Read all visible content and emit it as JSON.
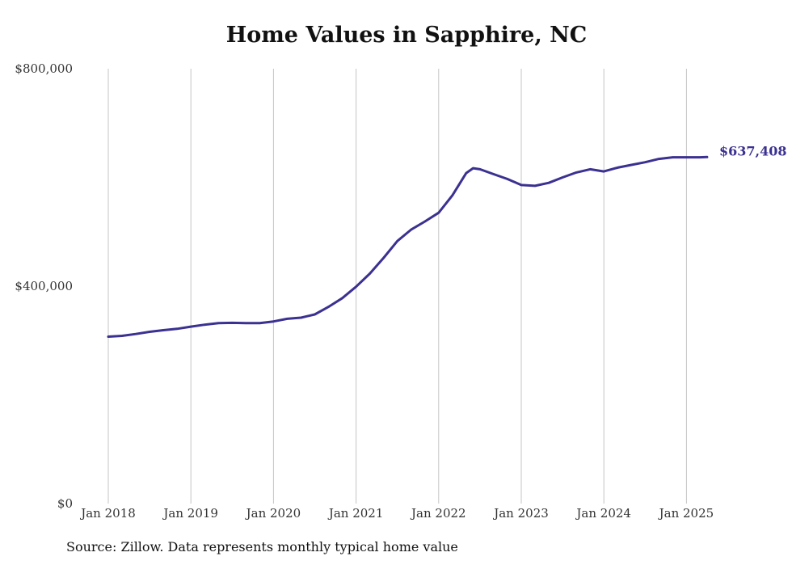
{
  "chart_data": {
    "type": "line",
    "title": "Home Values in Sapphire, NC",
    "xlabel": "",
    "ylabel": "",
    "x_ticks": [
      "Jan 2018",
      "Jan 2019",
      "Jan 2020",
      "Jan 2021",
      "Jan 2022",
      "Jan 2023",
      "Jan 2024",
      "Jan 2025"
    ],
    "y_ticks": [
      "$0",
      "$400,000",
      "$800,000"
    ],
    "ylim": [
      0,
      800000
    ],
    "xlim": [
      "2018-01",
      "2025-04"
    ],
    "grid": "vertical",
    "legend": "none",
    "line_color": "#3b3191",
    "end_label": "$637,408",
    "series": [
      {
        "x": [
          "2018-01",
          "2018-03",
          "2018-05",
          "2018-07",
          "2018-09",
          "2018-11",
          "2019-01",
          "2019-03",
          "2019-05",
          "2019-07",
          "2019-09",
          "2019-11",
          "2020-01",
          "2020-03",
          "2020-05",
          "2020-07",
          "2020-09",
          "2020-11",
          "2021-01",
          "2021-03",
          "2021-05",
          "2021-07",
          "2021-09",
          "2021-11",
          "2022-01",
          "2022-03",
          "2022-05",
          "2022-06",
          "2022-07",
          "2022-09",
          "2022-11",
          "2023-01",
          "2023-03",
          "2023-05",
          "2023-07",
          "2023-09",
          "2023-11",
          "2024-01",
          "2024-03",
          "2024-05",
          "2024-07",
          "2024-09",
          "2024-11",
          "2025-01",
          "2025-03",
          "2025-04"
        ],
        "values": [
          307000,
          308500,
          312000,
          316000,
          319000,
          321500,
          325500,
          329000,
          332000,
          332500,
          332000,
          332000,
          335000,
          340000,
          342000,
          348000,
          362000,
          378000,
          399000,
          423000,
          452000,
          483000,
          504000,
          519000,
          535000,
          567000,
          608000,
          617000,
          615000,
          606000,
          597000,
          586000,
          584500,
          590000,
          600000,
          609000,
          615000,
          611000,
          618000,
          623000,
          628000,
          634000,
          637000,
          637000,
          637000,
          637408
        ]
      }
    ]
  },
  "footer": {
    "source": "Source: Zillow. Data represents monthly typical home value"
  }
}
